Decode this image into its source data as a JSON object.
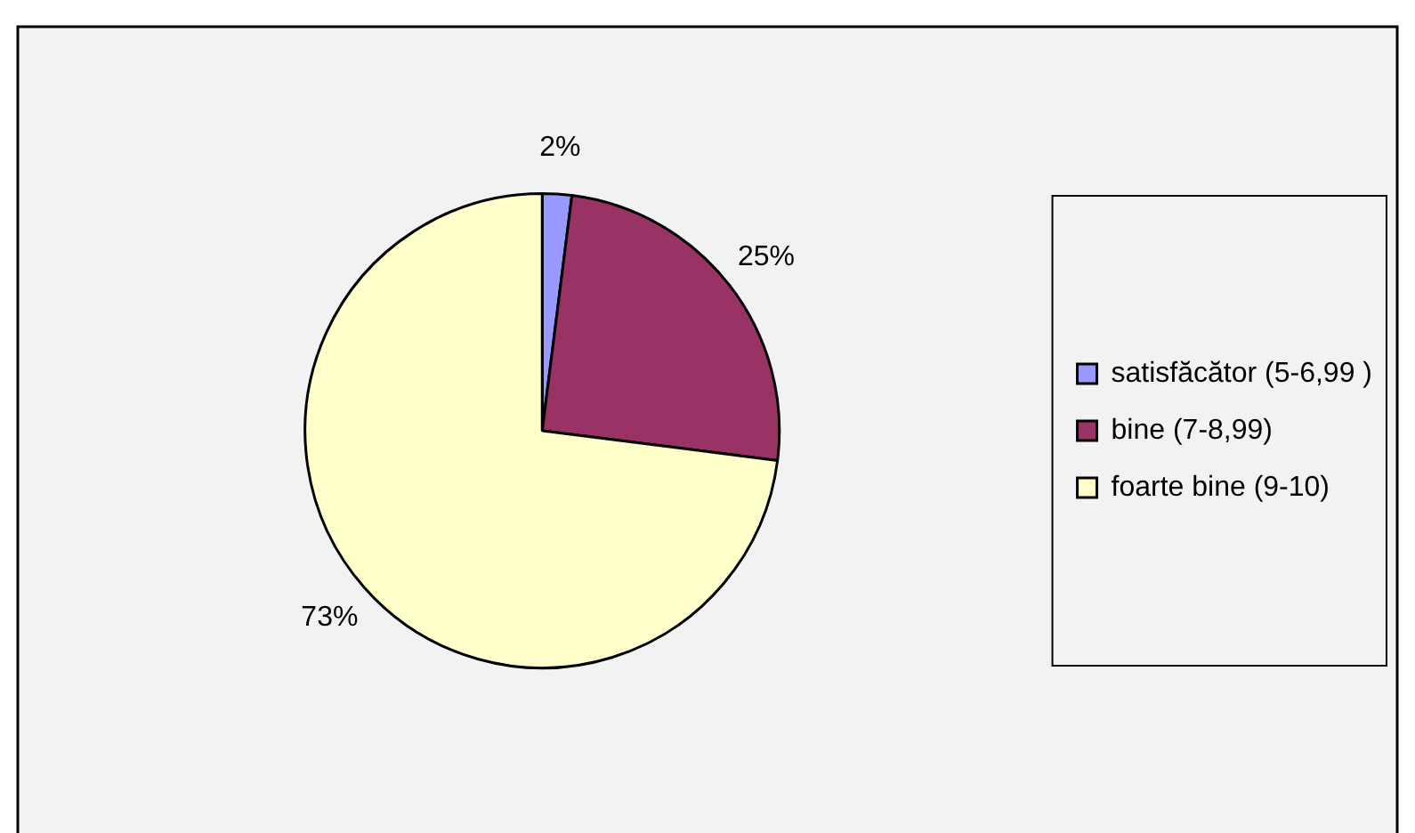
{
  "chart_data": {
    "type": "pie",
    "categories": [
      "satisfăcător (5-6,99 )",
      "bine (7-8,99)",
      "foarte bine (9-10)"
    ],
    "values": [
      2,
      25,
      73
    ],
    "colors": [
      "#9999ff",
      "#993366",
      "#ffffcc"
    ],
    "value_labels": [
      "2%",
      "25%",
      "73%"
    ],
    "legend": "right"
  }
}
